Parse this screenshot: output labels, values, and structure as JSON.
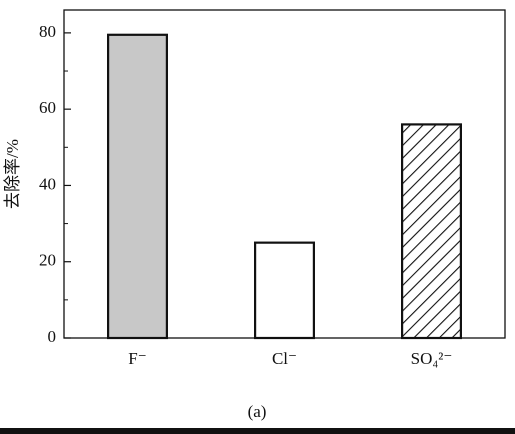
{
  "chart_data": {
    "type": "bar",
    "ylabel": "去除率/%",
    "caption": "(a)",
    "categories": [
      "F⁻",
      "Cl⁻",
      "SO₄²⁻"
    ],
    "values": [
      79.5,
      25,
      56
    ],
    "fills": [
      "#c8c8c8",
      "#ffffff",
      "#ffffff"
    ],
    "hatch": [
      false,
      false,
      true
    ],
    "ylim": [
      0,
      86
    ],
    "yticks": [
      0,
      20,
      40,
      60,
      80
    ],
    "yminorticks": [
      10,
      30,
      50,
      70
    ]
  }
}
